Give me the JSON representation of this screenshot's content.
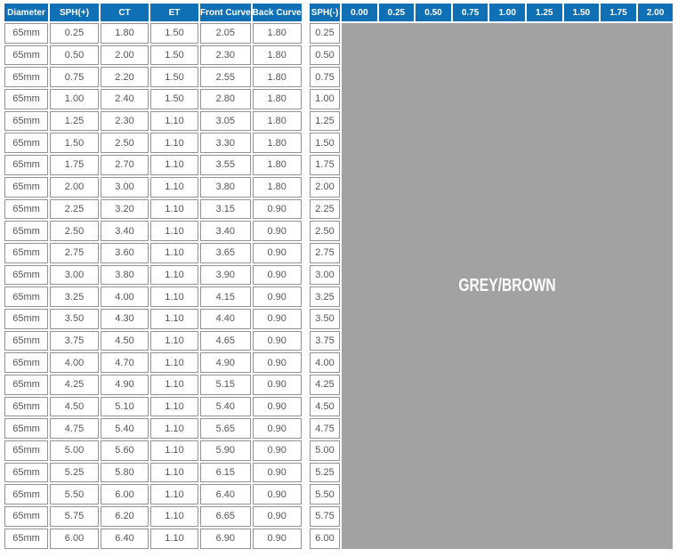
{
  "colors": {
    "header_bg": "#1070b6",
    "header_text": "#ffffff",
    "cell_border": "#919396",
    "cell_text": "#54565a",
    "availability_fill": "#a2a2a2",
    "availability_text": "#ffffff"
  },
  "plus_table": {
    "columns": [
      "Diameter",
      "SPH(+)",
      "CT",
      "ET",
      "Front Curve",
      "Back Curve"
    ],
    "rows": [
      [
        "65mm",
        "0.25",
        "1.80",
        "1.50",
        "2.05",
        "1.80"
      ],
      [
        "65mm",
        "0.50",
        "2.00",
        "1.50",
        "2.30",
        "1.80"
      ],
      [
        "65mm",
        "0.75",
        "2.20",
        "1.50",
        "2.55",
        "1.80"
      ],
      [
        "65mm",
        "1.00",
        "2.40",
        "1.50",
        "2.80",
        "1.80"
      ],
      [
        "65mm",
        "1.25",
        "2.30",
        "1.10",
        "3.05",
        "1.80"
      ],
      [
        "65mm",
        "1.50",
        "2.50",
        "1.10",
        "3.30",
        "1.80"
      ],
      [
        "65mm",
        "1.75",
        "2.70",
        "1.10",
        "3.55",
        "1.80"
      ],
      [
        "65mm",
        "2.00",
        "3.00",
        "1.10",
        "3.80",
        "1.80"
      ],
      [
        "65mm",
        "2.25",
        "3.20",
        "1.10",
        "3.15",
        "0.90"
      ],
      [
        "65mm",
        "2.50",
        "3.40",
        "1.10",
        "3.40",
        "0.90"
      ],
      [
        "65mm",
        "2.75",
        "3.60",
        "1.10",
        "3.65",
        "0.90"
      ],
      [
        "65mm",
        "3.00",
        "3.80",
        "1.10",
        "3.90",
        "0.90"
      ],
      [
        "65mm",
        "3.25",
        "4.00",
        "1.10",
        "4.15",
        "0.90"
      ],
      [
        "65mm",
        "3.50",
        "4.30",
        "1.10",
        "4.40",
        "0.90"
      ],
      [
        "65mm",
        "3.75",
        "4.50",
        "1.10",
        "4.65",
        "0.90"
      ],
      [
        "65mm",
        "4.00",
        "4.70",
        "1.10",
        "4.90",
        "0.90"
      ],
      [
        "65mm",
        "4.25",
        "4.90",
        "1.10",
        "5.15",
        "0.90"
      ],
      [
        "65mm",
        "4.50",
        "5.10",
        "1.10",
        "5.40",
        "0.90"
      ],
      [
        "65mm",
        "4.75",
        "5.40",
        "1.10",
        "5.65",
        "0.90"
      ],
      [
        "65mm",
        "5.00",
        "5.60",
        "1.10",
        "5.90",
        "0.90"
      ],
      [
        "65mm",
        "5.25",
        "5.80",
        "1.10",
        "6.15",
        "0.90"
      ],
      [
        "65mm",
        "5.50",
        "6.00",
        "1.10",
        "6.40",
        "0.90"
      ],
      [
        "65mm",
        "5.75",
        "6.20",
        "1.10",
        "6.65",
        "0.90"
      ],
      [
        "65mm",
        "6.00",
        "6.40",
        "1.10",
        "6.90",
        "0.90"
      ]
    ]
  },
  "minus_table": {
    "columns": [
      "SPH(-)",
      "0.00",
      "0.25",
      "0.50",
      "0.75",
      "1.00",
      "1.25",
      "1.50",
      "1.75",
      "2.00"
    ],
    "row_labels": [
      "0.25",
      "0.50",
      "0.75",
      "1.00",
      "1.25",
      "1.50",
      "1.75",
      "2.00",
      "2.25",
      "2.50",
      "2.75",
      "3.00",
      "3.25",
      "3.50",
      "3.75",
      "4.00",
      "4.25",
      "4.50",
      "4.75",
      "5.00",
      "5.25",
      "5.50",
      "5.75",
      "6.00"
    ],
    "area_label": "GREY/BROWN"
  }
}
